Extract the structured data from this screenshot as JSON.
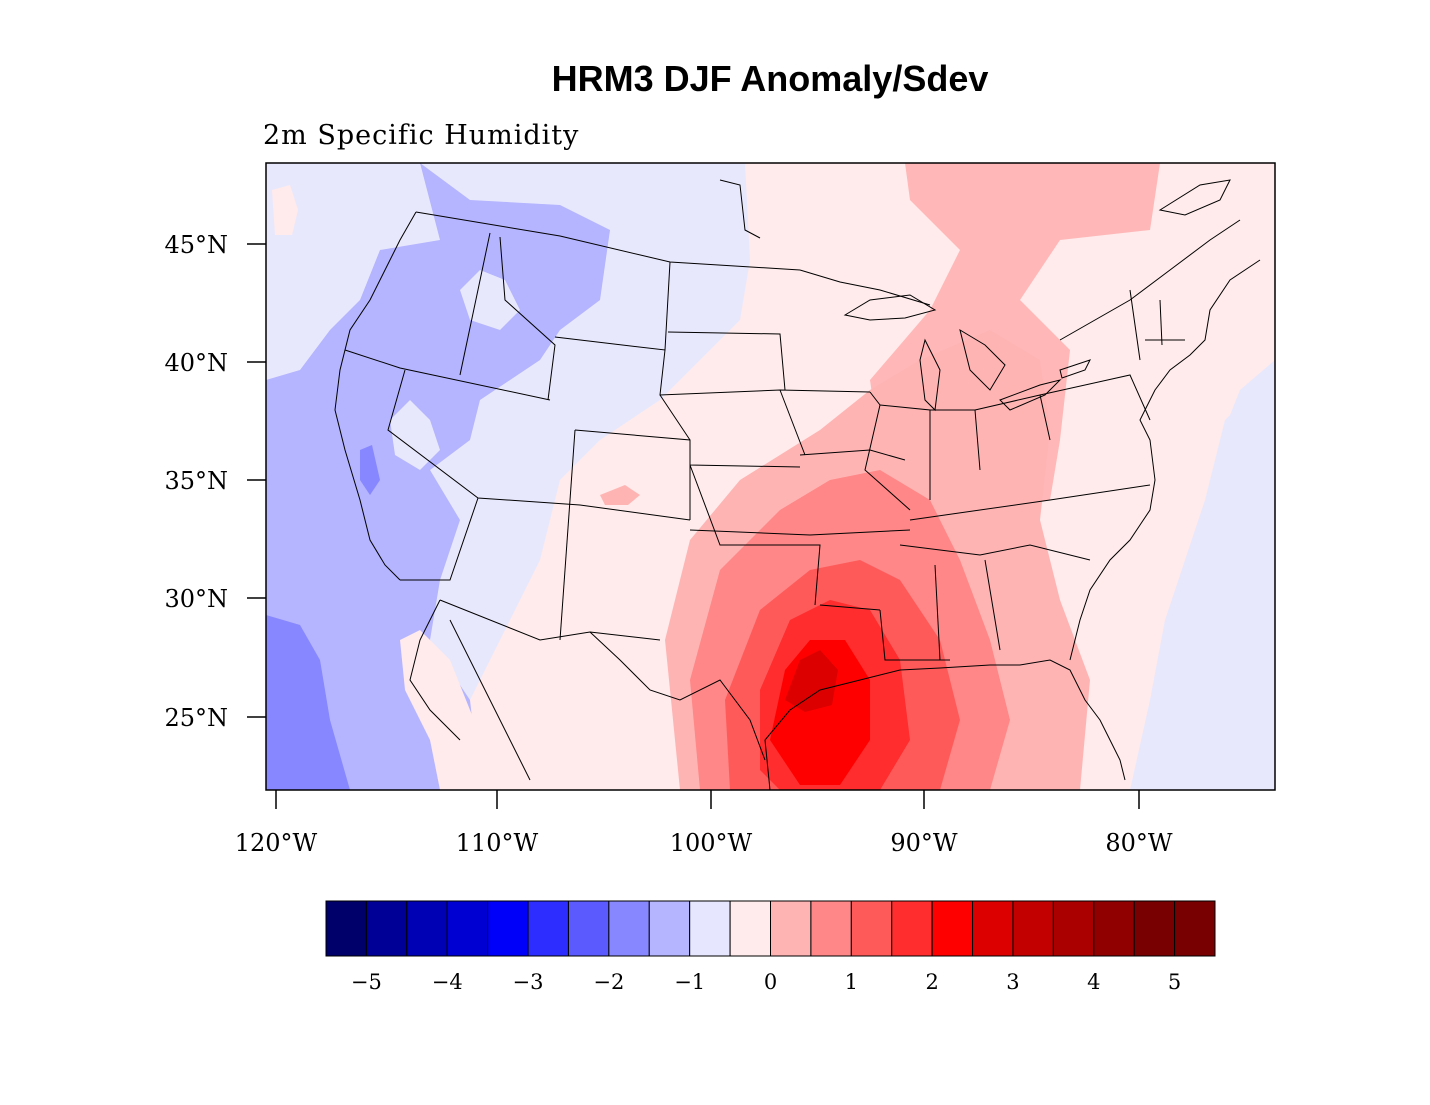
{
  "title": "HRM3 DJF Anomaly/Sdev",
  "subtitle": "2m Specific Humidity",
  "map": {
    "lon_range": [
      -120.5,
      -73.5
    ],
    "lat_range": [
      21.5,
      48.0
    ],
    "lat_ticks": [
      "45°N",
      "40°N",
      "35°N",
      "30°N",
      "25°N"
    ],
    "lon_ticks": [
      "120°W",
      "110°W",
      "100°W",
      "90°W",
      "80°W"
    ],
    "region": "contiguous United States with state boundaries"
  },
  "colorbar": {
    "labels": [
      "−5",
      "−4",
      "−3",
      "−2",
      "−1",
      "0",
      "1",
      "2",
      "3",
      "4",
      "5"
    ],
    "colors": [
      "#00006b",
      "#000096",
      "#0000b4",
      "#0000d2",
      "#0000fa",
      "#2d2dff",
      "#5a5aff",
      "#8787ff",
      "#b4b4ff",
      "#e6e6ff",
      "#ffebeb",
      "#ffb4b4",
      "#ff8787",
      "#ff5a5a",
      "#ff2d2d",
      "#ff0000",
      "#dc0000",
      "#c30000",
      "#aa0000",
      "#910000",
      "#780000"
    ]
  }
}
